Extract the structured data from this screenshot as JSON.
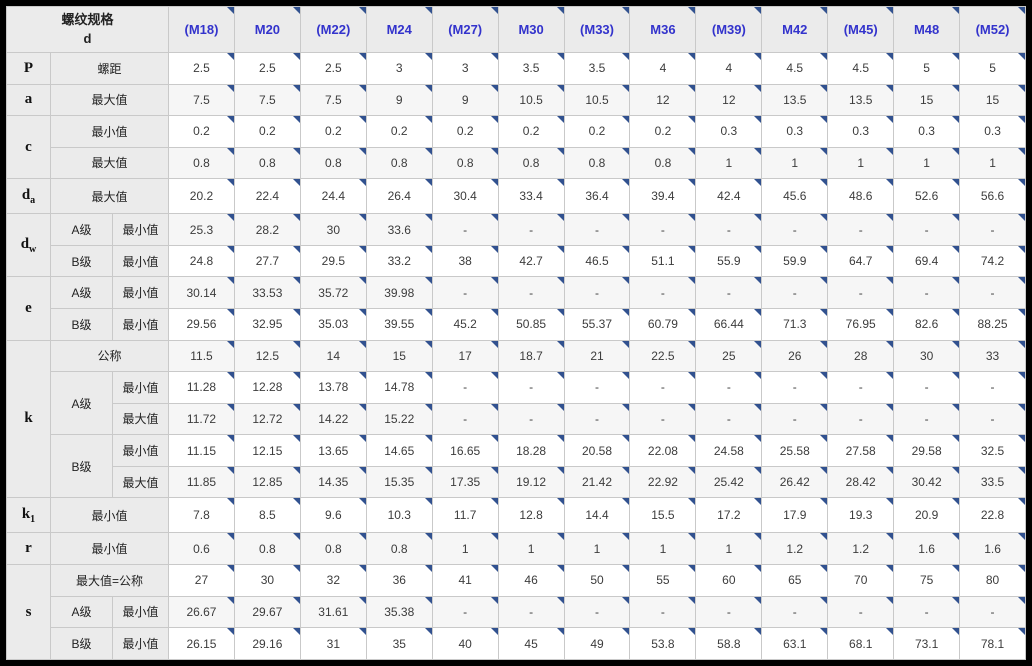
{
  "colors": {
    "header_text": "#3333cc",
    "label_bg": "#ebebeb",
    "marker": "#31518f",
    "grid": "#c9c9c9",
    "stripe": "#f6f6f6",
    "frame": "#000000"
  },
  "table": {
    "header": {
      "corner": [
        "螺纹规格",
        "d"
      ],
      "columns": [
        "(M18)",
        "M20",
        "(M22)",
        "M24",
        "(M27)",
        "M30",
        "(M33)",
        "M36",
        "(M39)",
        "M42",
        "(M45)",
        "M48",
        "(M52)"
      ]
    },
    "rows": [
      {
        "labels": [
          {
            "t": "P",
            "kind": "sym"
          },
          {
            "t": "螺距",
            "kind": "lim",
            "cs": 2
          }
        ],
        "values": [
          "2.5",
          "2.5",
          "2.5",
          "3",
          "3",
          "3.5",
          "3.5",
          "4",
          "4",
          "4.5",
          "4.5",
          "5",
          "5"
        ]
      },
      {
        "labels": [
          {
            "t": "a",
            "kind": "sym"
          },
          {
            "t": "最大值",
            "kind": "lim",
            "cs": 2
          }
        ],
        "values": [
          "7.5",
          "7.5",
          "7.5",
          "9",
          "9",
          "10.5",
          "10.5",
          "12",
          "12",
          "13.5",
          "13.5",
          "15",
          "15"
        ]
      },
      {
        "labels": [
          {
            "t": "c",
            "kind": "sym",
            "rs": 2
          },
          {
            "t": "最小值",
            "kind": "lim",
            "cs": 2
          }
        ],
        "values": [
          "0.2",
          "0.2",
          "0.2",
          "0.2",
          "0.2",
          "0.2",
          "0.2",
          "0.2",
          "0.3",
          "0.3",
          "0.3",
          "0.3",
          "0.3"
        ]
      },
      {
        "labels": [
          {
            "t": "最大值",
            "kind": "lim",
            "cs": 2
          }
        ],
        "values": [
          "0.8",
          "0.8",
          "0.8",
          "0.8",
          "0.8",
          "0.8",
          "0.8",
          "0.8",
          "1",
          "1",
          "1",
          "1",
          "1"
        ]
      },
      {
        "labels": [
          {
            "t": "d",
            "sub": "a",
            "kind": "sym"
          },
          {
            "t": "最大值",
            "kind": "lim",
            "cs": 2
          }
        ],
        "values": [
          "20.2",
          "22.4",
          "24.4",
          "26.4",
          "30.4",
          "33.4",
          "36.4",
          "39.4",
          "42.4",
          "45.6",
          "48.6",
          "52.6",
          "56.6"
        ]
      },
      {
        "labels": [
          {
            "t": "d",
            "sub": "w",
            "kind": "sym",
            "rs": 2
          },
          {
            "t": "A级",
            "kind": "grade"
          },
          {
            "t": "最小值",
            "kind": "lim"
          }
        ],
        "values": [
          "25.3",
          "28.2",
          "30",
          "33.6",
          "-",
          "-",
          "-",
          "-",
          "-",
          "-",
          "-",
          "-",
          "-"
        ]
      },
      {
        "labels": [
          {
            "t": "B级",
            "kind": "grade"
          },
          {
            "t": "最小值",
            "kind": "lim"
          }
        ],
        "values": [
          "24.8",
          "27.7",
          "29.5",
          "33.2",
          "38",
          "42.7",
          "46.5",
          "51.1",
          "55.9",
          "59.9",
          "64.7",
          "69.4",
          "74.2"
        ]
      },
      {
        "labels": [
          {
            "t": "e",
            "kind": "sym",
            "rs": 2
          },
          {
            "t": "A级",
            "kind": "grade"
          },
          {
            "t": "最小值",
            "kind": "lim"
          }
        ],
        "values": [
          "30.14",
          "33.53",
          "35.72",
          "39.98",
          "-",
          "-",
          "-",
          "-",
          "-",
          "-",
          "-",
          "-",
          "-"
        ]
      },
      {
        "labels": [
          {
            "t": "B级",
            "kind": "grade"
          },
          {
            "t": "最小值",
            "kind": "lim"
          }
        ],
        "values": [
          "29.56",
          "32.95",
          "35.03",
          "39.55",
          "45.2",
          "50.85",
          "55.37",
          "60.79",
          "66.44",
          "71.3",
          "76.95",
          "82.6",
          "88.25"
        ]
      },
      {
        "labels": [
          {
            "t": "k",
            "kind": "sym",
            "rs": 5
          },
          {
            "t": "公称",
            "kind": "lim",
            "cs": 2
          }
        ],
        "values": [
          "11.5",
          "12.5",
          "14",
          "15",
          "17",
          "18.7",
          "21",
          "22.5",
          "25",
          "26",
          "28",
          "30",
          "33"
        ]
      },
      {
        "labels": [
          {
            "t": "A级",
            "kind": "grade",
            "rs": 2
          },
          {
            "t": "最小值",
            "kind": "lim"
          }
        ],
        "values": [
          "11.28",
          "12.28",
          "13.78",
          "14.78",
          "-",
          "-",
          "-",
          "-",
          "-",
          "-",
          "-",
          "-",
          "-"
        ]
      },
      {
        "labels": [
          {
            "t": "最大值",
            "kind": "lim"
          }
        ],
        "values": [
          "11.72",
          "12.72",
          "14.22",
          "15.22",
          "-",
          "-",
          "-",
          "-",
          "-",
          "-",
          "-",
          "-",
          "-"
        ]
      },
      {
        "labels": [
          {
            "t": "B级",
            "kind": "grade",
            "rs": 2
          },
          {
            "t": "最小值",
            "kind": "lim"
          }
        ],
        "values": [
          "11.15",
          "12.15",
          "13.65",
          "14.65",
          "16.65",
          "18.28",
          "20.58",
          "22.08",
          "24.58",
          "25.58",
          "27.58",
          "29.58",
          "32.5"
        ]
      },
      {
        "labels": [
          {
            "t": "最大值",
            "kind": "lim"
          }
        ],
        "values": [
          "11.85",
          "12.85",
          "14.35",
          "15.35",
          "17.35",
          "19.12",
          "21.42",
          "22.92",
          "25.42",
          "26.42",
          "28.42",
          "30.42",
          "33.5"
        ]
      },
      {
        "labels": [
          {
            "t": "k",
            "sub": "1",
            "kind": "sym"
          },
          {
            "t": "最小值",
            "kind": "lim",
            "cs": 2
          }
        ],
        "values": [
          "7.8",
          "8.5",
          "9.6",
          "10.3",
          "11.7",
          "12.8",
          "14.4",
          "15.5",
          "17.2",
          "17.9",
          "19.3",
          "20.9",
          "22.8"
        ]
      },
      {
        "labels": [
          {
            "t": "r",
            "kind": "sym"
          },
          {
            "t": "最小值",
            "kind": "lim",
            "cs": 2
          }
        ],
        "values": [
          "0.6",
          "0.8",
          "0.8",
          "0.8",
          "1",
          "1",
          "1",
          "1",
          "1",
          "1.2",
          "1.2",
          "1.6",
          "1.6"
        ]
      },
      {
        "labels": [
          {
            "t": "s",
            "kind": "sym",
            "rs": 3
          },
          {
            "t": "最大值=公称",
            "kind": "lim",
            "cs": 2
          }
        ],
        "values": [
          "27",
          "30",
          "32",
          "36",
          "41",
          "46",
          "50",
          "55",
          "60",
          "65",
          "70",
          "75",
          "80"
        ]
      },
      {
        "labels": [
          {
            "t": "A级",
            "kind": "grade"
          },
          {
            "t": "最小值",
            "kind": "lim"
          }
        ],
        "values": [
          "26.67",
          "29.67",
          "31.61",
          "35.38",
          "-",
          "-",
          "-",
          "-",
          "-",
          "-",
          "-",
          "-",
          "-"
        ]
      },
      {
        "labels": [
          {
            "t": "B级",
            "kind": "grade"
          },
          {
            "t": "最小值",
            "kind": "lim"
          }
        ],
        "values": [
          "26.15",
          "29.16",
          "31",
          "35",
          "40",
          "45",
          "49",
          "53.8",
          "58.8",
          "63.1",
          "68.1",
          "73.1",
          "78.1"
        ]
      }
    ]
  }
}
